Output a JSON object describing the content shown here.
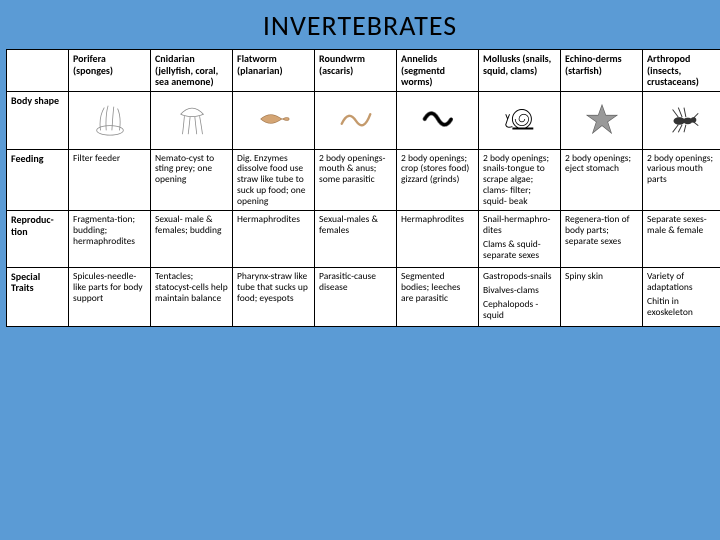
{
  "title": "INVERTEBRATES",
  "colors": {
    "background": "#5b9bd5",
    "cell_bg": "#ffffff",
    "border": "#000000",
    "text": "#000000"
  },
  "columns": [
    {
      "name": "Porifera (sponges)"
    },
    {
      "name": "Cnidarian (jellyfish, coral, sea anemone)"
    },
    {
      "name": "Flatworm (planarian)"
    },
    {
      "name": "Roundwrm (ascaris)"
    },
    {
      "name": "Annelids (segmentd worms)"
    },
    {
      "name": "Mollusks (snails, squid, clams)"
    },
    {
      "name": "Echino-derms (starfish)"
    },
    {
      "name": "Arthropod (insects, crustaceans)"
    }
  ],
  "row_headers": {
    "shape": "Body shape",
    "feeding": "Feeding",
    "repro": "Reproduc-tion",
    "traits": "Special Traits"
  },
  "rows": {
    "feeding": [
      "Filter feeder",
      "Nemato-cyst to sting prey; one opening",
      "Dig. Enzymes dissolve food use straw like tube to suck up food; one opening",
      "2 body openings-mouth & anus; some parasitic",
      "2 body openings; crop (stores food) gizzard (grinds)",
      "2 body openings; snails-tongue to scrape algae; clams- filter; squid- beak",
      "2 body openings; eject stomach",
      "2 body openings; various mouth parts"
    ],
    "repro": [
      "Fragmenta-tion; budding; hermaphrodites",
      "Sexual- male & females; budding",
      "Hermaphrodites",
      "Sexual-males & females",
      "Hermaphrodites",
      "Snail-hermaphro-dites\nClams & squid-separate sexes",
      "Regenera-tion of body parts; separate sexes",
      "Separate sexes- male & female"
    ],
    "traits": [
      "Spicules-needle-like parts for body support",
      "Tentacles; statocyst-cells help maintain balance",
      "Pharynx-straw like tube that sucks up food; eyespots",
      "Parasitic-cause disease",
      "Segmented bodies; leeches are parasitic",
      "Gastropods-snails\nBivalves-clams\nCephalopods - squid",
      "Spiny skin",
      "Variety of adaptations\nChitin in exoskeleton"
    ]
  },
  "icons": [
    "sponge-icon",
    "jellyfish-icon",
    "flatworm-icon",
    "roundworm-icon",
    "annelid-icon",
    "snail-icon",
    "starfish-icon",
    "insect-icon"
  ]
}
